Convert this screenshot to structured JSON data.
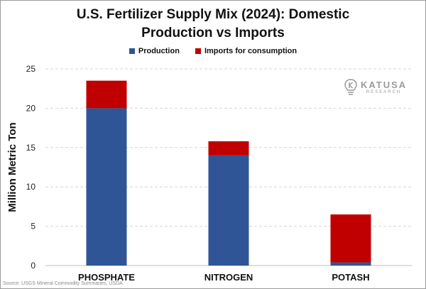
{
  "chart_data": {
    "type": "bar",
    "stacked": true,
    "title": "U.S. Fertilizer Supply Mix (2024): Domestic Production vs Imports",
    "title_lines": [
      "U.S. Fertilizer Supply Mix (2024): Domestic",
      "Production vs Imports"
    ],
    "ylabel": "Million Metric Ton",
    "xlabel": "",
    "categories": [
      "PHOSPHATE",
      "NITROGEN",
      "POTASH"
    ],
    "series": [
      {
        "name": "Production",
        "color": "#2f5597",
        "values": [
          20.0,
          14.0,
          0.4
        ]
      },
      {
        "name": "Imports for consumption",
        "color": "#c00000",
        "values": [
          3.5,
          1.8,
          6.1
        ]
      }
    ],
    "ylim": [
      0,
      25
    ],
    "yticks": [
      0,
      5,
      10,
      15,
      20,
      25
    ],
    "grid": true,
    "legend_position": "top-center"
  },
  "logo": {
    "name": "KATUSA",
    "sub": "RESEARCH",
    "icon": "lightbulb-k-icon"
  },
  "source": "Source: USGS Mineral Commodity Summaries, USDA"
}
